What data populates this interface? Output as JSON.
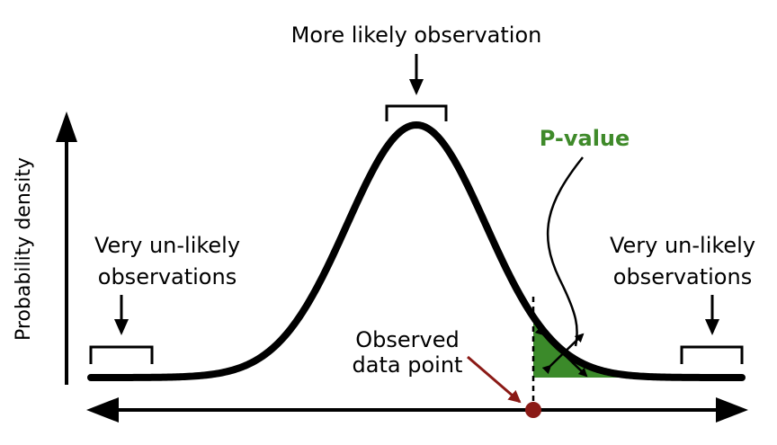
{
  "labels": {
    "top": "More likely observation",
    "left_line1": "Very un-likely",
    "left_line2": "observations",
    "right_line1": "Very un-likely",
    "right_line2": "observations",
    "p_value": "P-value",
    "observed_line1": "Observed",
    "observed_line2": "data point",
    "y_axis": "Probability density"
  },
  "colors": {
    "curve": "#000000",
    "p_value": "#3f8a2a",
    "p_value_fill": "#3b8a2a",
    "observed": "#8b1a16"
  }
}
